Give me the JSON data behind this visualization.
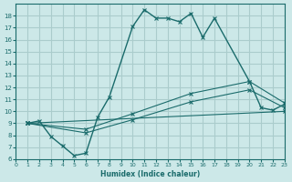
{
  "bg_color": "#cce8e8",
  "grid_color": "#aacccc",
  "line_color": "#1a6b6b",
  "xlabel": "Humidex (Indice chaleur)",
  "xlim": [
    0,
    23
  ],
  "ylim": [
    6,
    19
  ],
  "xticks": [
    0,
    1,
    2,
    3,
    4,
    5,
    6,
    7,
    8,
    9,
    10,
    11,
    12,
    13,
    14,
    15,
    16,
    17,
    18,
    19,
    20,
    21,
    22,
    23
  ],
  "yticks": [
    6,
    7,
    8,
    9,
    10,
    11,
    12,
    13,
    14,
    15,
    16,
    17,
    18
  ],
  "curve1_x": [
    1,
    2,
    3,
    4,
    5,
    6,
    7,
    8,
    10,
    11,
    12,
    13,
    14,
    15,
    16,
    17,
    20,
    21,
    22,
    23
  ],
  "curve1_y": [
    9.0,
    9.2,
    7.9,
    7.1,
    6.3,
    6.5,
    9.5,
    11.2,
    17.1,
    18.5,
    17.8,
    17.8,
    17.5,
    18.2,
    16.2,
    17.8,
    12.5,
    10.3,
    10.1,
    10.6
  ],
  "curve2_x": [
    1,
    6,
    10,
    15,
    20,
    23
  ],
  "curve2_y": [
    9.0,
    8.5,
    9.8,
    11.5,
    12.5,
    10.7
  ],
  "curve3_x": [
    1,
    6,
    10,
    15,
    20,
    23
  ],
  "curve3_y": [
    9.0,
    8.2,
    9.3,
    10.8,
    11.8,
    10.3
  ],
  "curve4_x": [
    1,
    23
  ],
  "curve4_y": [
    9.0,
    10.0
  ]
}
